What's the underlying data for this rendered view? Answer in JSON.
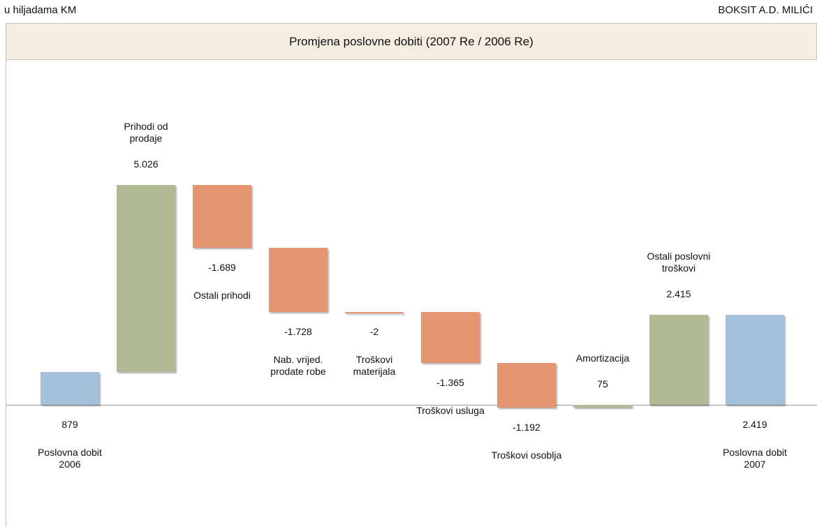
{
  "header": {
    "left": "u hiljadama KM",
    "right": "BOKSIT A.D. MILIĆI"
  },
  "chart_data": {
    "type": "waterfall",
    "title": "Promjena poslovne dobiti (2007 Re / 2006 Re)",
    "categories": [
      "Poslovna dobit 2006",
      "Prihodi od prodaje",
      "Ostali prihodi",
      "Nab. vrijed. prodate robe",
      "Troškovi materijala",
      "Troškovi usluga",
      "Troškovi osoblja",
      "Amortizacija",
      "Ostali poslovni troškovi",
      "Poslovna dobit 2007"
    ],
    "values": [
      879,
      5026,
      -1689,
      -1728,
      -2,
      -1365,
      -1192,
      75,
      2415,
      2419
    ],
    "value_labels": [
      "879",
      "5.026",
      "-1.689",
      "-1.728",
      "-2",
      "-1.365",
      "-1.192",
      "75",
      "2.415",
      "2.419"
    ],
    "colors": [
      "#a5c0da",
      "#b2b995",
      "#e3966f",
      "#e3966f",
      "#e3966f",
      "#e3966f",
      "#e3966f",
      "#b2b995",
      "#b2b995",
      "#a5c0da"
    ]
  }
}
